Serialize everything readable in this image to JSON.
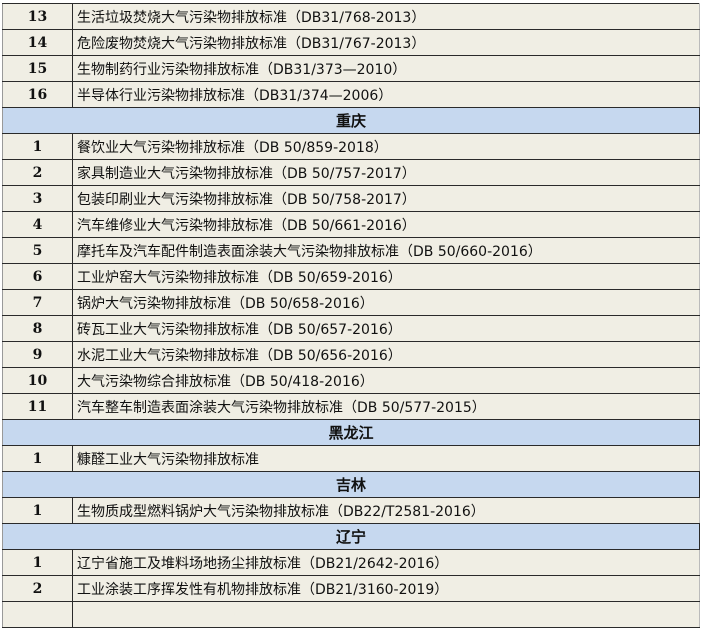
{
  "colors": {
    "cell_bg": "#f0eee4",
    "section_bg": "#c6d8ef",
    "border": "#2a2a2a"
  },
  "rows": [
    {
      "type": "item",
      "no": "13",
      "name": "生活垃圾焚烧大气污染物排放标准（DB31/768-2013）"
    },
    {
      "type": "item",
      "no": "14",
      "name": "危险废物焚烧大气污染物排放标准（DB31/767-2013）"
    },
    {
      "type": "item",
      "no": "15",
      "name": "生物制药行业污染物排放标准（DB31/373—2010）"
    },
    {
      "type": "item",
      "no": "16",
      "name": "半导体行业污染物排放标准（DB31/374—2006）"
    },
    {
      "type": "section",
      "name": "重庆"
    },
    {
      "type": "item",
      "no": "1",
      "name": "餐饮业大气污染物排放标准（DB 50/859-2018）"
    },
    {
      "type": "item",
      "no": "2",
      "name": "家具制造业大气污染物排放标准（DB 50/757-2017）"
    },
    {
      "type": "item",
      "no": "3",
      "name": "包装印刷业大气污染物排放标准（DB 50/758-2017）"
    },
    {
      "type": "item",
      "no": "4",
      "name": "汽车维修业大气污染物排放标准（DB 50/661-2016）"
    },
    {
      "type": "item",
      "no": "5",
      "name": "摩托车及汽车配件制造表面涂装大气污染物排放标准（DB 50/660-2016）"
    },
    {
      "type": "item",
      "no": "6",
      "name": "工业炉窑大气污染物排放标准（DB 50/659-2016）"
    },
    {
      "type": "item",
      "no": "7",
      "name": "锅炉大气污染物排放标准（DB 50/658-2016）"
    },
    {
      "type": "item",
      "no": "8",
      "name": "砖瓦工业大气污染物排放标准（DB 50/657-2016）"
    },
    {
      "type": "item",
      "no": "9",
      "name": "水泥工业大气污染物排放标准（DB 50/656-2016）"
    },
    {
      "type": "item",
      "no": "10",
      "name": "大气污染物综合排放标准（DB 50/418-2016）"
    },
    {
      "type": "item",
      "no": "11",
      "name": "汽车整车制造表面涂装大气污染物排放标准（DB 50/577-2015）"
    },
    {
      "type": "section",
      "name": "黑龙江"
    },
    {
      "type": "item",
      "no": "1",
      "name": "糠醛工业大气污染物排放标准"
    },
    {
      "type": "section",
      "name": "吉林"
    },
    {
      "type": "item",
      "no": "1",
      "name": "生物质成型燃料锅炉大气污染物排放标准（DB22/T2581-2016）"
    },
    {
      "type": "section",
      "name": "辽宁"
    },
    {
      "type": "item",
      "no": "1",
      "name": "辽宁省施工及堆料场地扬尘排放标准（DB21/2642-2016）"
    },
    {
      "type": "item",
      "no": "2",
      "name": "工业涂装工序挥发性有机物排放标准（DB21/3160-2019）"
    },
    {
      "type": "item",
      "no": "",
      "name": ""
    }
  ]
}
